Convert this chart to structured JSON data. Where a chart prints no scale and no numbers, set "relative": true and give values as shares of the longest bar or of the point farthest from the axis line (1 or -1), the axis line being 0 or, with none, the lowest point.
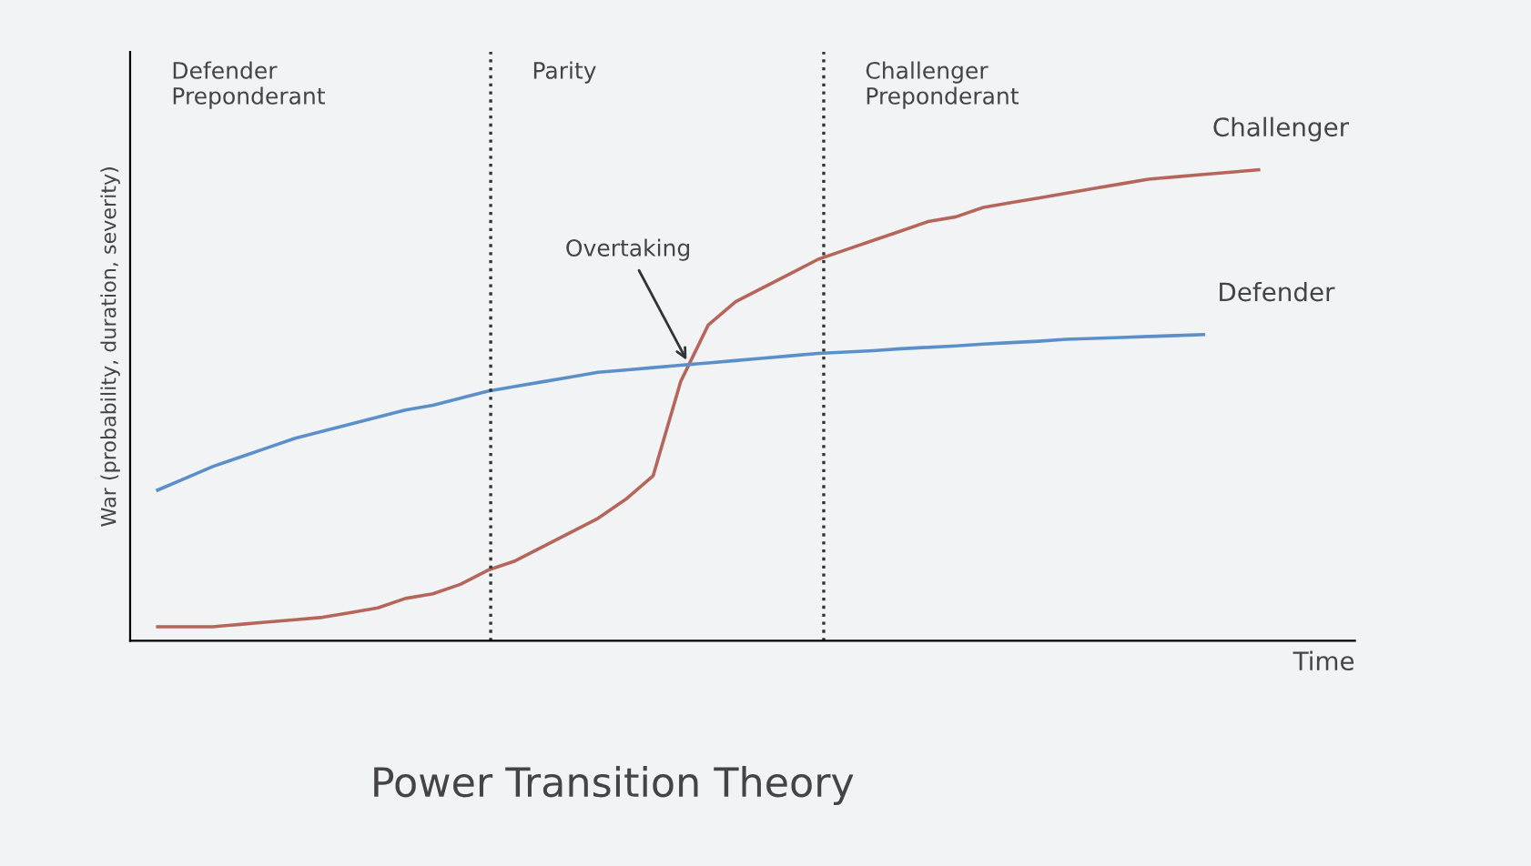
{
  "chart_data": {
    "type": "line",
    "relative": true,
    "title": "Power Transition Theory",
    "xlabel": "Time",
    "ylabel": "War (probability, duration, severity)",
    "categories": [
      null,
      null,
      null,
      null,
      null,
      null,
      null,
      null,
      null,
      null,
      null,
      null,
      null,
      null,
      null,
      null,
      null,
      null,
      null,
      null,
      null,
      null,
      null,
      null,
      null,
      null,
      null,
      null,
      null,
      null,
      null,
      null,
      null,
      null,
      null,
      null,
      null,
      null,
      null,
      null,
      null
    ],
    "series": [
      {
        "name": "Challenger",
        "color": "#b5655a",
        "values": [
          0.03,
          0.03,
          0.03,
          0.035,
          0.04,
          0.045,
          0.05,
          0.06,
          0.07,
          0.09,
          0.1,
          0.12,
          0.15,
          0.17,
          0.2,
          0.23,
          0.26,
          0.3,
          0.35,
          0.55,
          0.67,
          0.72,
          0.75,
          0.78,
          0.81,
          0.83,
          0.85,
          0.87,
          0.89,
          0.9,
          0.92,
          0.93,
          0.94,
          0.95,
          0.96,
          0.97,
          0.98,
          0.985,
          0.99,
          0.995,
          1.0
        ]
      },
      {
        "name": "Defender",
        "color": "#5b8fc9",
        "values": [
          0.32,
          0.345,
          0.37,
          0.39,
          0.41,
          0.43,
          0.445,
          0.46,
          0.475,
          0.49,
          0.5,
          0.515,
          0.53,
          0.54,
          0.55,
          0.56,
          0.57,
          0.575,
          0.58,
          0.585,
          0.59,
          0.595,
          0.6,
          0.605,
          0.61,
          0.613,
          0.616,
          0.62,
          0.623,
          0.626,
          0.63,
          0.633,
          0.636,
          0.64,
          0.642,
          0.644,
          0.646,
          0.648,
          0.65,
          null,
          null
        ]
      }
    ],
    "annotations": [
      "Defender\nPreponderant",
      "Parity",
      "Challenger\nPreponderant",
      "Overtaking"
    ],
    "legend": false,
    "marker": "none",
    "line_style": "solid"
  }
}
